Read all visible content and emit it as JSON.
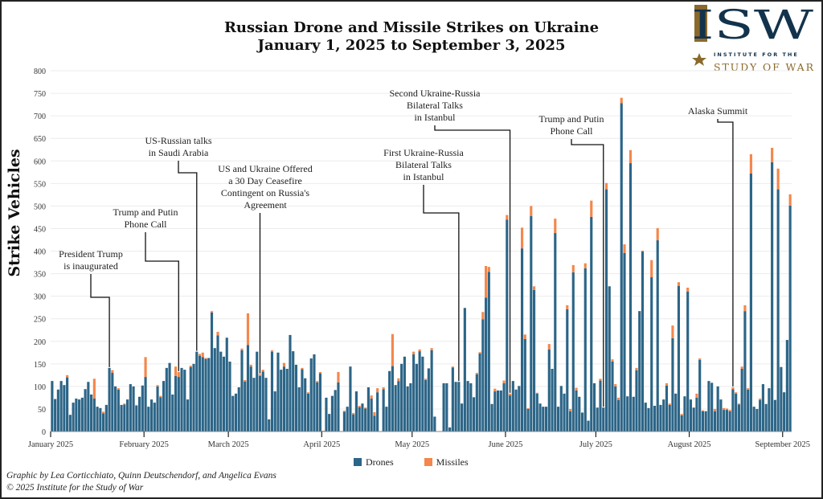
{
  "title_line1": "Russian Drone and Missile Strikes on Ukraine",
  "title_line2": "January 1, 2025 to September 3, 2025",
  "logo": {
    "letters": "ISW",
    "line1": "INSTITUTE FOR THE",
    "line2": "STUDY OF WAR",
    "navy": "#13334c",
    "gold": "#8a6a2c"
  },
  "credits": {
    "line1": "Graphic by Lea Corticchiato, Quinn Deutschendorf, and Angelica Evans",
    "line2": "© 2025 Institute for the Study of War"
  },
  "chart_data": {
    "type": "bar",
    "stacked": true,
    "title": "Russian Drone and Missile Strikes on Ukraine January 1, 2025 to September 3, 2025",
    "ylabel": "Strike Vehicles",
    "ylim": [
      0,
      800
    ],
    "yticks": [
      0,
      50,
      100,
      150,
      200,
      250,
      300,
      350,
      400,
      450,
      500,
      550,
      600,
      650,
      700,
      750,
      800
    ],
    "grid": true,
    "legend_placement": "bottom",
    "colors": {
      "Drones": "#2c6587",
      "Missiles": "#f4874b"
    },
    "series_names": [
      "Drones",
      "Missiles"
    ],
    "months": [
      {
        "label": "January 2025",
        "drones": [
          112,
          72,
          93,
          112,
          103,
          120,
          37,
          64,
          73,
          71,
          75,
          94,
          110,
          82,
          73,
          55,
          52,
          40,
          59,
          141,
          130,
          100,
          93,
          59,
          60,
          71,
          105,
          100,
          57,
          77,
          102
        ],
        "missiles": [
          0,
          0,
          0,
          0,
          0,
          5,
          0,
          0,
          0,
          0,
          0,
          0,
          0,
          0,
          44,
          0,
          0,
          4,
          0,
          0,
          6,
          0,
          3,
          0,
          2,
          0,
          0,
          0,
          2,
          0,
          0
        ]
      },
      {
        "label": "February 2025",
        "drones": [
          121,
          55,
          71,
          64,
          100,
          76,
          112,
          141,
          152,
          82,
          123,
          121,
          141,
          137,
          71,
          143,
          150,
          177,
          168,
          165,
          161,
          163,
          264,
          185,
          213,
          177,
          166,
          208
        ],
        "missiles": [
          44,
          0,
          0,
          0,
          3,
          3,
          0,
          0,
          0,
          0,
          21,
          11,
          0,
          0,
          0,
          3,
          0,
          0,
          4,
          10,
          2,
          0,
          3,
          0,
          8,
          0,
          0,
          0
        ]
      },
      {
        "label": "March 2025",
        "drones": [
          155,
          79,
          84,
          98,
          180,
          111,
          192,
          144,
          119,
          177,
          123,
          133,
          119,
          27,
          177,
          89,
          175,
          137,
          144,
          139,
          214,
          178,
          148,
          98,
          138,
          118,
          84,
          162,
          171,
          109,
          129
        ],
        "missiles": [
          0,
          0,
          0,
          0,
          4,
          3,
          70,
          4,
          0,
          0,
          4,
          4,
          0,
          0,
          3,
          0,
          0,
          0,
          8,
          0,
          0,
          0,
          0,
          0,
          3,
          0,
          3,
          0,
          0,
          3,
          3
        ]
      },
      {
        "label": "April 2025",
        "drones": [
          0,
          75,
          39,
          79,
          92,
          109,
          0,
          44,
          55,
          144,
          38,
          89,
          54,
          62,
          51,
          98,
          73,
          35,
          87,
          0,
          94,
          55,
          134,
          145,
          103,
          112,
          150,
          166,
          100,
          107
        ],
        "missiles": [
          2,
          0,
          0,
          0,
          0,
          23,
          0,
          2,
          0,
          0,
          3,
          0,
          3,
          0,
          2,
          0,
          7,
          8,
          9,
          0,
          4,
          0,
          0,
          71,
          0,
          6,
          0,
          0,
          0,
          0
        ]
      },
      {
        "label": "May 2025",
        "drones": [
          171,
          150,
          178,
          166,
          114,
          140,
          180,
          33,
          0,
          0,
          107,
          107,
          9,
          142,
          110,
          110,
          62,
          274,
          112,
          107,
          76,
          127,
          173,
          249,
          297,
          354,
          61,
          89,
          91,
          91,
          107
        ],
        "missiles": [
          6,
          0,
          4,
          0,
          3,
          0,
          5,
          0,
          0,
          0,
          0,
          0,
          0,
          2,
          0,
          0,
          0,
          0,
          0,
          0,
          0,
          3,
          3,
          16,
          70,
          11,
          0,
          6,
          0,
          0,
          6
        ]
      },
      {
        "label": "June 2025",
        "drones": [
          470,
          80,
          112,
          93,
          101,
          406,
          205,
          50,
          478,
          314,
          84,
          62,
          55,
          55,
          182,
          139,
          440,
          55,
          101,
          84,
          271,
          45,
          353,
          91,
          77,
          42,
          362,
          24,
          476,
          107
        ],
        "missiles": [
          10,
          4,
          0,
          0,
          0,
          46,
          10,
          2,
          22,
          8,
          2,
          0,
          0,
          0,
          12,
          0,
          32,
          0,
          0,
          0,
          9,
          5,
          16,
          6,
          0,
          0,
          11,
          0,
          36,
          0
        ]
      },
      {
        "label": "July 2025",
        "drones": [
          53,
          113,
          53,
          537,
          322,
          155,
          100,
          70,
          728,
          396,
          78,
          595,
          77,
          136,
          267,
          399,
          64,
          52,
          342,
          57,
          424,
          59,
          71,
          102,
          59,
          207,
          84,
          323,
          36,
          78,
          310
        ],
        "missiles": [
          0,
          4,
          0,
          14,
          0,
          5,
          5,
          5,
          12,
          19,
          0,
          29,
          0,
          5,
          0,
          2,
          0,
          0,
          38,
          0,
          27,
          0,
          0,
          5,
          3,
          28,
          0,
          8,
          3,
          0,
          9
        ]
      },
      {
        "label": "August 2025",
        "drones": [
          71,
          53,
          75,
          159,
          45,
          45,
          112,
          108,
          45,
          100,
          71,
          48,
          48,
          45,
          94,
          84,
          60,
          139,
          267,
          93,
          572,
          55,
          50,
          70,
          105,
          61,
          96,
          597,
          70,
          537,
          143
        ],
        "missiles": [
          0,
          0,
          9,
          3,
          2,
          0,
          0,
          0,
          5,
          0,
          0,
          4,
          3,
          3,
          4,
          3,
          2,
          5,
          13,
          3,
          43,
          0,
          0,
          3,
          0,
          0,
          0,
          32,
          0,
          46,
          0
        ]
      },
      {
        "label": "September 2025",
        "drones": [
          87,
          203,
          501
        ],
        "missiles": [
          0,
          0,
          25
        ]
      }
    ],
    "annotations": [
      {
        "lines": [
          "President Trump",
          "is inaugurated"
        ],
        "date": "2025-01-20"
      },
      {
        "lines": [
          "Trump and Putin",
          "Phone Call"
        ],
        "date": "2025-02-12"
      },
      {
        "lines": [
          "US-Russian talks",
          "in Saudi Arabia"
        ],
        "date": "2025-02-18"
      },
      {
        "lines": [
          "US and Ukraine Offered",
          "a 30 Day Ceasefire",
          "Contingent on Russia's",
          "Agreement"
        ],
        "date": "2025-03-11"
      },
      {
        "lines": [
          "First Ukraine-Russia",
          "Bilateral Talks",
          "in Istanbul"
        ],
        "date": "2025-05-16"
      },
      {
        "lines": [
          "Second Ukraine-Russia",
          "Bilateral Talks",
          "in Istanbul"
        ],
        "date": "2025-06-02"
      },
      {
        "lines": [
          "Trump and Putin",
          "Phone Call"
        ],
        "date": "2025-07-03"
      },
      {
        "lines": [
          "Alaska Summit"
        ],
        "date": "2025-08-15"
      }
    ]
  }
}
